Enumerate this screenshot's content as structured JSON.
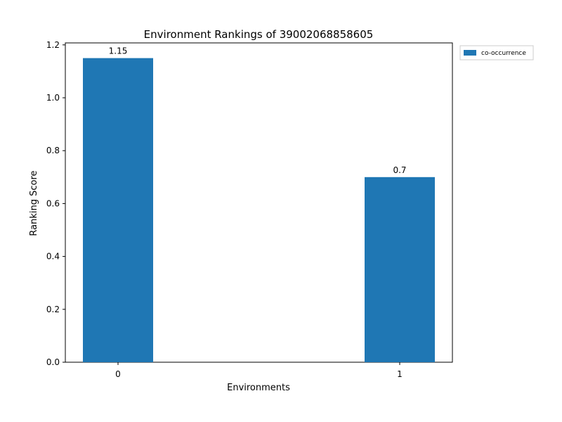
{
  "chart_data": {
    "type": "bar",
    "title": "Environment Rankings of 39002068858605",
    "xlabel": "Environments",
    "ylabel": "Ranking Score",
    "categories": [
      "0",
      "1"
    ],
    "series": [
      {
        "name": "co-occurrence",
        "values": [
          1.15,
          0.7
        ],
        "labels": [
          "1.15",
          "0.7"
        ],
        "color": "#1f77b4"
      }
    ],
    "ylim": [
      0,
      1.2075
    ],
    "yticks": [
      "0.0",
      "0.2",
      "0.4",
      "0.6",
      "0.8",
      "1.0",
      "1.2"
    ],
    "grid": false,
    "legend_position": "outside-top-right"
  }
}
